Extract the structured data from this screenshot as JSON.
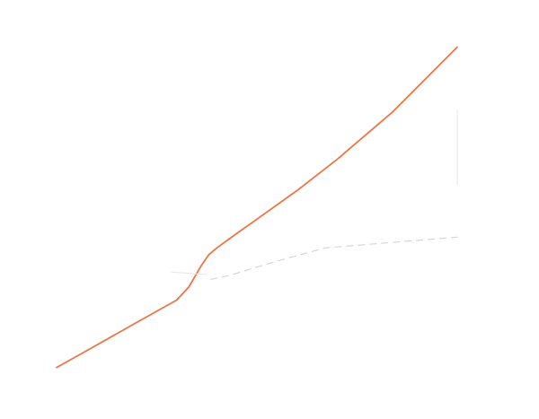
{
  "chart_data": {
    "type": "line",
    "title": "",
    "xlabel": "",
    "ylabel": "",
    "xlim": [
      0,
      100
    ],
    "ylim": [
      0,
      100
    ],
    "grid": false,
    "legend": "none",
    "series": [
      {
        "style": "solid",
        "color": "#ee7443",
        "x": [
          0,
          10,
          20,
          30,
          33,
          36,
          38,
          40,
          45,
          50,
          60,
          70,
          84,
          100
        ],
        "y": [
          9.3,
          17.2,
          25.2,
          33.1,
          37.7,
          45.0,
          49.1,
          51.5,
          56.6,
          61.6,
          71.7,
          82.7,
          99.6,
          122.3
        ]
      },
      {
        "style": "dashed",
        "color": "#d6d6d6",
        "x": [
          38.5,
          43,
          55,
          67,
          80,
          100
        ],
        "y": [
          40.4,
          41.7,
          46.8,
          51.5,
          53.0,
          55.3
        ]
      },
      {
        "style": "thin",
        "color": "#e6e6e6",
        "x": [
          28.5,
          37.5
        ],
        "y": [
          43.0,
          42.1
        ]
      },
      {
        "style": "thin",
        "color": "#e6e6e6",
        "x": [
          100,
          100
        ],
        "y": [
          73.6,
          100.0
        ]
      }
    ]
  }
}
